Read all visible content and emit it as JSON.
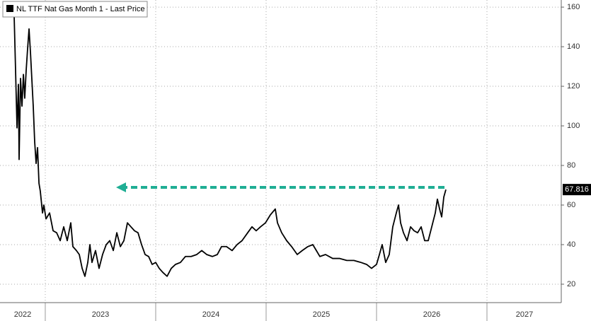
{
  "chart_data": {
    "type": "line",
    "series": [
      {
        "name": "NL TTF Nat Gas Month 1 - Last Price",
        "color": "#000000",
        "x": [
          2022.718,
          2022.731,
          2022.744,
          2022.757,
          2022.763,
          2022.776,
          2022.789,
          2022.802,
          2022.814,
          2022.827,
          2022.84,
          2022.853,
          2022.866,
          2022.878,
          2022.891,
          2022.904,
          2022.917,
          2022.93,
          2022.943,
          2022.955,
          2022.975,
          2022.987,
          2023.007,
          2023.039,
          2023.071,
          2023.103,
          2023.135,
          2023.167,
          2023.199,
          2023.231,
          2023.25,
          2023.282,
          2023.308,
          2023.334,
          2023.359,
          2023.385,
          2023.404,
          2023.423,
          2023.455,
          2023.487,
          2023.519,
          2023.552,
          2023.584,
          2023.616,
          2023.648,
          2023.68,
          2023.712,
          2023.744,
          2023.776,
          2023.808,
          2023.84,
          2023.872,
          2023.904,
          2023.936,
          2023.968,
          2024.0,
          2024.032,
          2024.064,
          2024.103,
          2024.141,
          2024.179,
          2024.224,
          2024.269,
          2024.321,
          2024.372,
          2024.417,
          2024.462,
          2024.513,
          2024.558,
          2024.596,
          2024.641,
          2024.692,
          2024.737,
          2024.782,
          2024.833,
          2024.872,
          2024.91,
          2024.949,
          2024.994,
          2025.038,
          2025.083,
          2025.103,
          2025.141,
          2025.186,
          2025.231,
          2025.282,
          2025.327,
          2025.378,
          2025.423,
          2025.455,
          2025.487,
          2025.538,
          2025.603,
          2025.667,
          2025.731,
          2025.795,
          2025.859,
          2025.91,
          2025.955,
          2026.0,
          2026.026,
          2026.051,
          2026.083,
          2026.115,
          2026.147,
          2026.179,
          2026.199,
          2026.218,
          2026.244,
          2026.276,
          2026.308,
          2026.34,
          2026.372,
          2026.404,
          2026.436,
          2026.468,
          2026.5,
          2026.532,
          2026.551,
          2026.571,
          2026.59,
          2026.609,
          2026.628
        ],
        "values": [
          156,
          128,
          99,
          121,
          83,
          124,
          110,
          126,
          114,
          128,
          139,
          149,
          137,
          124,
          110,
          92,
          81,
          89,
          71,
          67,
          56,
          60,
          53,
          56,
          47,
          46,
          42,
          49,
          42,
          51,
          39,
          37,
          35,
          28,
          24,
          31,
          40,
          31,
          37,
          28,
          35,
          40,
          42,
          37,
          46,
          39,
          42,
          51,
          49,
          47,
          46,
          40,
          35,
          34,
          30,
          31,
          28,
          26,
          24,
          28,
          30,
          31,
          34,
          34,
          35,
          37,
          35,
          34,
          35,
          39,
          39,
          37,
          40,
          42,
          46,
          49,
          47,
          49,
          51,
          55,
          58,
          51,
          46,
          42,
          39,
          35,
          37,
          39,
          40,
          37,
          34,
          35,
          33,
          33,
          32,
          32,
          31,
          30,
          28,
          30,
          35,
          40,
          31,
          35,
          49,
          56,
          60,
          51,
          46,
          42,
          49,
          47,
          46,
          49,
          42,
          42,
          49,
          56,
          63,
          58,
          54,
          64,
          67.816
        ]
      }
    ],
    "xlim": [
      2022.59,
      2027.673
    ],
    "xticks": [
      {
        "value": 2022.795,
        "label": "2022"
      },
      {
        "value": 2023.5,
        "label": "2023"
      },
      {
        "value": 2024.5,
        "label": "2024"
      },
      {
        "value": 2025.5,
        "label": "2025"
      },
      {
        "value": 2026.5,
        "label": "2026"
      },
      {
        "value": 2027.34,
        "label": "2027"
      }
    ],
    "xminor_ticks": [
      2023,
      2024,
      2025,
      2026,
      2027
    ],
    "ylim": [
      10.7,
      163.6
    ],
    "yticks": [
      20,
      40,
      60,
      80,
      100,
      120,
      140,
      160
    ],
    "grid": true,
    "y_axis_side": "right",
    "legend": "top-left"
  }
}
